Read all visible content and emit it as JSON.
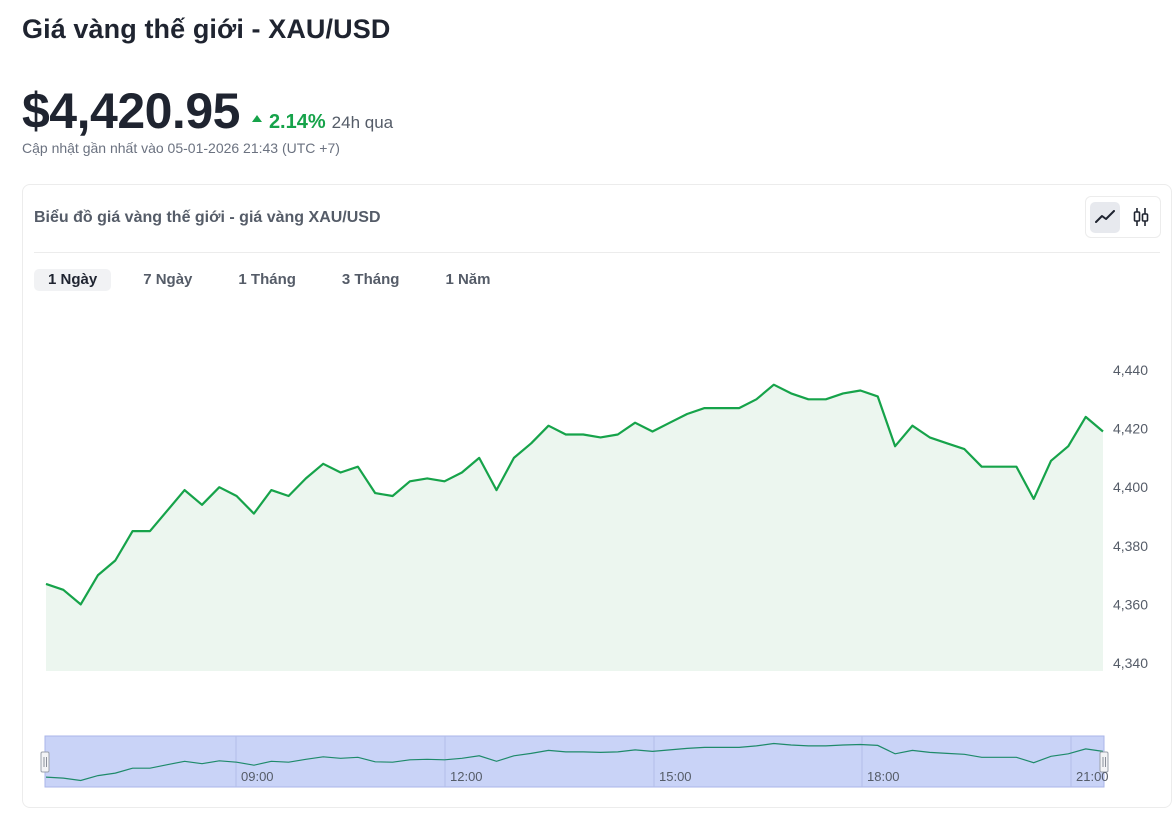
{
  "title": "Giá vàng thế giới - XAU/USD",
  "price": "$4,420.95",
  "change_pct": "2.14%",
  "change_label": "24h qua",
  "updated": "Cập nhật gần nhất vào 05-01-2026 21:43 (UTC +7)",
  "card_title": "Biểu đồ giá vàng thế giới - giá vàng XAU/USD",
  "toggle": {
    "line": "line-chart-icon",
    "candle": "candlestick-icon"
  },
  "tabs": [
    {
      "label": "1 Ngày",
      "active": true
    },
    {
      "label": "7 Ngày",
      "active": false
    },
    {
      "label": "1 Tháng",
      "active": false
    },
    {
      "label": "3 Tháng",
      "active": false
    },
    {
      "label": "1 Năm",
      "active": false
    }
  ],
  "colors": {
    "line": "#16a34a",
    "area": "#ecf6ef",
    "navigator_fill": "#c9d3f7",
    "navigator_line": "#1e8a6a",
    "up": "#16a34a"
  },
  "chart_data": {
    "type": "area",
    "y_ticks": [
      "4,440",
      "4,420",
      "4,400",
      "4,380",
      "4,360",
      "4,340"
    ],
    "ylim": [
      4340,
      4440
    ],
    "values": [
      4367,
      4365,
      4360,
      4370,
      4375,
      4385,
      4385,
      4392,
      4399,
      4394,
      4400,
      4397,
      4391,
      4399,
      4397,
      4403,
      4408,
      4405,
      4407,
      4398,
      4397,
      4402,
      4403,
      4402,
      4405,
      4410,
      4399,
      4410,
      4415,
      4421,
      4418,
      4418,
      4417,
      4418,
      4422,
      4419,
      4422,
      4425,
      4427,
      4427,
      4427,
      4430,
      4435,
      4432,
      4430,
      4430,
      4432,
      4433,
      4431,
      4414,
      4421,
      4417,
      4415,
      4413,
      4407,
      4407,
      4407,
      4396,
      4409,
      4414,
      4424,
      4419
    ],
    "navigator_ticks": [
      "09:00",
      "12:00",
      "15:00",
      "18:00",
      "21:00"
    ]
  }
}
